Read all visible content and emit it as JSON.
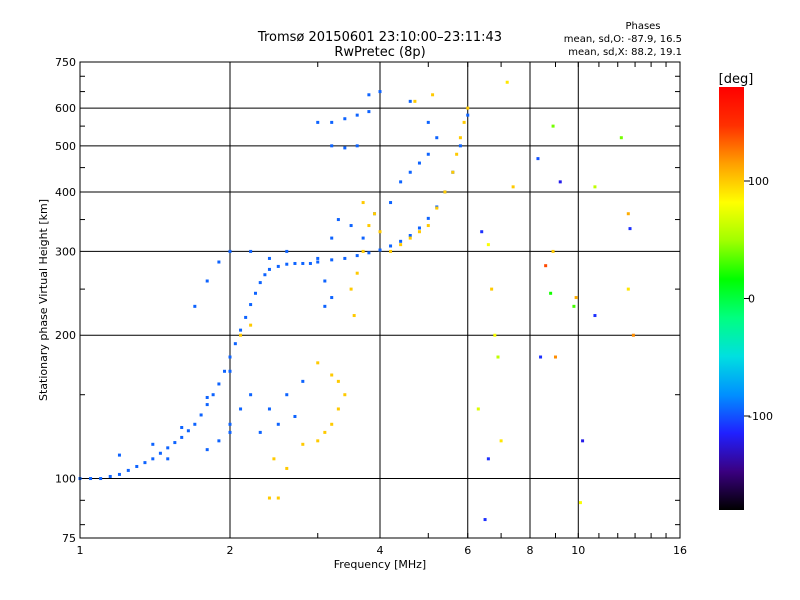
{
  "chart_data": {
    "type": "scatter",
    "title": "Tromsø 20150601 23:10:00–23:11:43",
    "subtitle": "RwPretec (8p)",
    "stats": {
      "title": "Phases",
      "line_o": "mean, sd,O:  -87.9, 16.5",
      "line_x": "mean, sd,X:   88.2, 19.1"
    },
    "xlabel": "Frequency [MHz]",
    "ylabel": "Stationary phase Virtual Height [km]",
    "x_scale": "log",
    "y_scale": "log",
    "xlim": [
      1,
      16
    ],
    "ylim": [
      75,
      750
    ],
    "x_ticks": [
      1,
      2,
      4,
      6,
      8,
      10,
      16
    ],
    "y_ticks": [
      75,
      100,
      200,
      300,
      400,
      500,
      600,
      750
    ],
    "x_grid": [
      2,
      4,
      6,
      8,
      10
    ],
    "y_grid": [
      100,
      200,
      300,
      400,
      500,
      600
    ],
    "grid": true,
    "colorbar": {
      "label": "[deg]",
      "range": [
        -180,
        180
      ],
      "ticks": [
        100,
        0,
        -100
      ],
      "colors": [
        "#000000",
        "#3a0080",
        "#2020ff",
        "#0090ff",
        "#00e0e0",
        "#00ff80",
        "#00ff00",
        "#a0ff00",
        "#ffff00",
        "#ffa000",
        "#ff3000",
        "#ff0000"
      ]
    },
    "series": [
      {
        "mode": "O",
        "phase": -95,
        "points": [
          [
            1.0,
            100
          ],
          [
            1.05,
            100
          ],
          [
            1.1,
            100
          ],
          [
            1.15,
            101
          ],
          [
            1.2,
            102
          ],
          [
            1.25,
            104
          ],
          [
            1.3,
            106
          ],
          [
            1.35,
            108
          ],
          [
            1.4,
            110
          ],
          [
            1.45,
            113
          ],
          [
            1.5,
            116
          ],
          [
            1.55,
            119
          ],
          [
            1.6,
            122
          ],
          [
            1.65,
            126
          ],
          [
            1.7,
            130
          ],
          [
            1.75,
            136
          ],
          [
            1.8,
            143
          ],
          [
            1.85,
            150
          ],
          [
            1.9,
            158
          ],
          [
            1.95,
            168
          ],
          [
            2.0,
            180
          ],
          [
            2.05,
            192
          ],
          [
            2.1,
            205
          ],
          [
            2.15,
            218
          ],
          [
            2.2,
            232
          ],
          [
            2.25,
            245
          ],
          [
            2.3,
            258
          ],
          [
            2.35,
            268
          ],
          [
            2.4,
            275
          ],
          [
            2.5,
            279
          ],
          [
            2.6,
            282
          ],
          [
            2.7,
            283
          ],
          [
            2.8,
            283
          ],
          [
            2.9,
            283
          ],
          [
            3.0,
            285
          ],
          [
            3.2,
            288
          ],
          [
            3.4,
            290
          ],
          [
            3.6,
            294
          ],
          [
            3.8,
            298
          ],
          [
            4.0,
            302
          ],
          [
            4.2,
            308
          ],
          [
            4.4,
            315
          ],
          [
            4.6,
            324
          ],
          [
            4.8,
            336
          ],
          [
            5.0,
            352
          ],
          [
            5.2,
            372
          ],
          [
            5.4,
            400
          ],
          [
            5.6,
            440
          ],
          [
            5.8,
            500
          ],
          [
            6.0,
            580
          ],
          [
            1.2,
            112
          ],
          [
            1.4,
            118
          ],
          [
            1.6,
            128
          ],
          [
            1.8,
            148
          ],
          [
            2.0,
            168
          ],
          [
            1.7,
            230
          ],
          [
            1.8,
            260
          ],
          [
            1.9,
            285
          ],
          [
            2.0,
            300
          ],
          [
            2.2,
            300
          ],
          [
            2.4,
            290
          ],
          [
            2.6,
            300
          ],
          [
            2.2,
            150
          ],
          [
            2.4,
            140
          ],
          [
            2.6,
            150
          ],
          [
            2.8,
            160
          ],
          [
            1.9,
            120
          ],
          [
            2.0,
            130
          ],
          [
            2.1,
            140
          ],
          [
            1.5,
            110
          ],
          [
            1.8,
            115
          ],
          [
            2.0,
            125
          ],
          [
            2.3,
            125
          ],
          [
            2.5,
            130
          ],
          [
            2.7,
            135
          ],
          [
            3.0,
            560
          ],
          [
            3.2,
            560
          ],
          [
            3.4,
            570
          ],
          [
            3.6,
            580
          ],
          [
            3.8,
            590
          ],
          [
            3.2,
            500
          ],
          [
            3.4,
            495
          ],
          [
            3.6,
            500
          ],
          [
            3.0,
            290
          ],
          [
            3.1,
            260
          ],
          [
            3.2,
            240
          ],
          [
            3.1,
            230
          ],
          [
            3.2,
            320
          ],
          [
            3.3,
            350
          ],
          [
            3.5,
            340
          ],
          [
            3.7,
            320
          ],
          [
            3.9,
            360
          ],
          [
            4.2,
            380
          ],
          [
            4.4,
            420
          ],
          [
            4.6,
            440
          ],
          [
            4.8,
            460
          ],
          [
            5.0,
            480
          ],
          [
            5.2,
            520
          ],
          [
            5.0,
            560
          ],
          [
            4.6,
            620
          ],
          [
            3.8,
            640
          ],
          [
            4.0,
            650
          ]
        ]
      },
      {
        "mode": "X",
        "phase": 100,
        "points": [
          [
            2.4,
            91
          ],
          [
            2.5,
            91
          ],
          [
            2.45,
            110
          ],
          [
            2.6,
            105
          ],
          [
            2.8,
            118
          ],
          [
            3.0,
            120
          ],
          [
            3.1,
            125
          ],
          [
            3.2,
            130
          ],
          [
            3.3,
            140
          ],
          [
            3.4,
            150
          ],
          [
            3.3,
            160
          ],
          [
            3.2,
            165
          ],
          [
            3.5,
            250
          ],
          [
            3.55,
            220
          ],
          [
            3.6,
            270
          ],
          [
            3.7,
            300
          ],
          [
            3.8,
            340
          ],
          [
            3.9,
            360
          ],
          [
            3.7,
            380
          ],
          [
            4.0,
            330
          ],
          [
            4.2,
            300
          ],
          [
            4.4,
            310
          ],
          [
            4.6,
            320
          ],
          [
            4.8,
            330
          ],
          [
            5.0,
            340
          ],
          [
            5.2,
            370
          ],
          [
            5.4,
            400
          ],
          [
            5.6,
            440
          ],
          [
            5.7,
            480
          ],
          [
            5.8,
            520
          ],
          [
            5.9,
            560
          ],
          [
            6.0,
            600
          ],
          [
            4.7,
            620
          ],
          [
            5.1,
            640
          ],
          [
            2.2,
            210
          ],
          [
            2.1,
            200
          ],
          [
            3.0,
            175
          ]
        ]
      }
    ],
    "scattered": [
      [
        8.9,
        550,
        40
      ],
      [
        12.2,
        520,
        40
      ],
      [
        10.8,
        410,
        60
      ],
      [
        9.2,
        420,
        -120
      ],
      [
        7.4,
        410,
        100
      ],
      [
        8.9,
        300,
        100
      ],
      [
        8.6,
        280,
        140
      ],
      [
        9.9,
        240,
        110
      ],
      [
        8.8,
        245,
        20
      ],
      [
        10.8,
        220,
        -110
      ],
      [
        12.6,
        250,
        90
      ],
      [
        8.4,
        180,
        -110
      ],
      [
        9.0,
        180,
        120
      ],
      [
        10.2,
        120,
        -120
      ],
      [
        10.1,
        89,
        80
      ],
      [
        6.4,
        330,
        -110
      ],
      [
        6.6,
        310,
        80
      ],
      [
        6.7,
        250,
        100
      ],
      [
        6.8,
        200,
        80
      ],
      [
        6.9,
        180,
        60
      ],
      [
        6.3,
        140,
        70
      ],
      [
        6.6,
        110,
        -110
      ],
      [
        6.5,
        82,
        -110
      ],
      [
        7.2,
        680,
        90
      ],
      [
        12.7,
        335,
        -110
      ],
      [
        12.9,
        200,
        120
      ],
      [
        12.6,
        360,
        110
      ],
      [
        8.3,
        470,
        -100
      ],
      [
        9.8,
        230,
        30
      ],
      [
        7.0,
        120,
        90
      ]
    ]
  }
}
